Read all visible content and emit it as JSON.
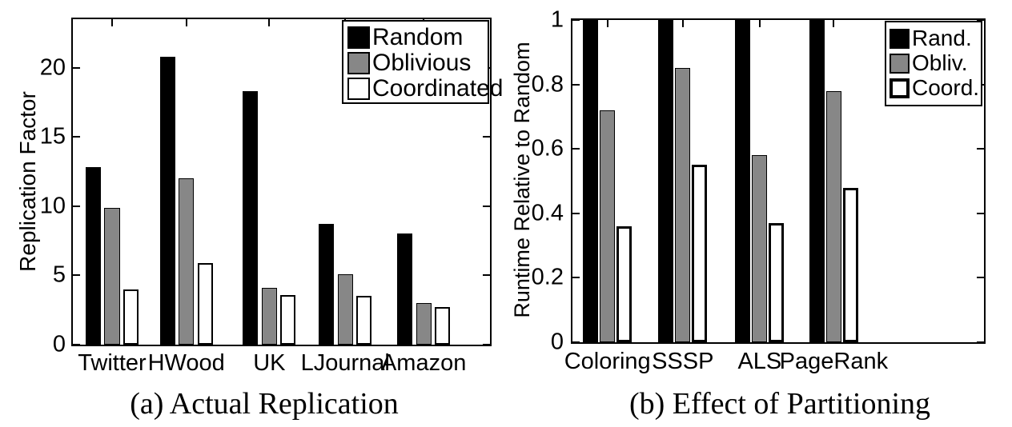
{
  "figure": {
    "background": "#ffffff",
    "foreground": "#000000",
    "gray": "#878787"
  },
  "chart_data": [
    {
      "type": "bar",
      "caption": "(a) Actual Replication",
      "ylabel": "Replication Factor",
      "xlabel": "",
      "categories": [
        "Twitter",
        "HWood",
        "UK",
        "LJournal",
        "Amazon"
      ],
      "series": [
        {
          "name": "Random",
          "color": "#000000",
          "bar_border_px": 0,
          "swatch_border_px": 0,
          "values": [
            12.8,
            20.8,
            18.3,
            8.7,
            8.0
          ]
        },
        {
          "name": "Oblivious",
          "color": "#878787",
          "bar_border_px": 1,
          "swatch_border_px": 2,
          "values": [
            9.9,
            12.0,
            4.1,
            5.1,
            3.0
          ]
        },
        {
          "name": "Coordinated",
          "color": "#ffffff",
          "bar_border_px": 2,
          "swatch_border_px": 2,
          "values": [
            4.0,
            5.9,
            3.6,
            3.5,
            2.7
          ]
        }
      ],
      "ylim": [
        0,
        23.5
      ],
      "yticks": [
        "0",
        "5",
        "10",
        "15",
        "20"
      ],
      "grid": false,
      "legend_position": "top-right",
      "layout": {
        "group_centers": [
          0.094,
          0.272,
          0.471,
          0.653,
          0.841
        ],
        "bar_width_frac": 0.0366,
        "bar_pitch_frac": 0.0452
      }
    },
    {
      "type": "bar",
      "caption": "(b) Effect of Partitioning",
      "ylabel": "Runtime Relative to Random",
      "xlabel": "",
      "categories": [
        "Coloring",
        "SSSP",
        "ALS",
        "PageRank"
      ],
      "series": [
        {
          "name": "Rand.",
          "color": "#000000",
          "bar_border_px": 0,
          "swatch_border_px": 0,
          "values": [
            1.0,
            1.0,
            1.0,
            1.0
          ]
        },
        {
          "name": "Obliv.",
          "color": "#878787",
          "bar_border_px": 1,
          "swatch_border_px": 2,
          "values": [
            0.72,
            0.85,
            0.58,
            0.78
          ]
        },
        {
          "name": "Coord.",
          "color": "#ffffff",
          "bar_border_px": 3,
          "swatch_border_px": 4,
          "values": [
            0.36,
            0.55,
            0.37,
            0.48
          ]
        }
      ],
      "ylim": [
        0,
        1
      ],
      "yticks": [
        "0",
        "0.2",
        "0.4",
        "0.6",
        "0.8",
        "1"
      ],
      "grid": false,
      "legend_position": "top-right",
      "layout": {
        "group_centers": [
          0.085,
          0.268,
          0.455,
          0.635
        ],
        "bar_width_frac": 0.037,
        "bar_pitch_frac": 0.0408
      }
    }
  ]
}
